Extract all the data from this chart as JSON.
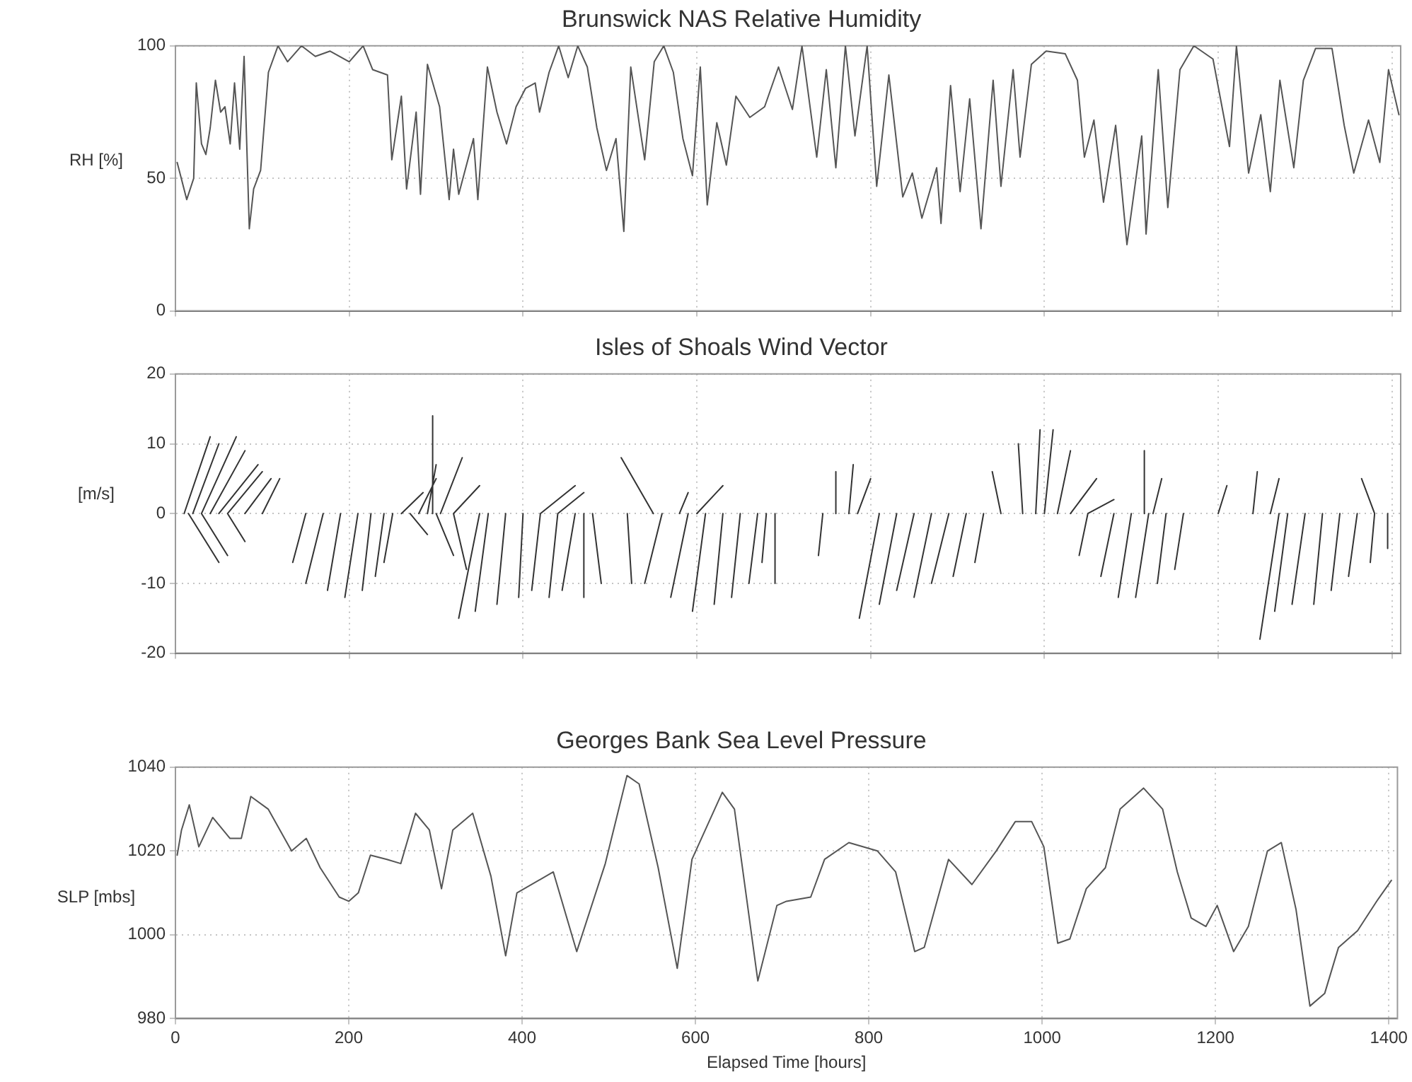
{
  "chart_data": [
    {
      "type": "line",
      "title": "Brunswick NAS Relative Humidity",
      "ylabel": "RH [%]",
      "color": "#555555",
      "marker": "none",
      "grid": true,
      "tick_labels": "y",
      "xlim": [
        0,
        1410
      ],
      "xticks": [
        0,
        200,
        400,
        600,
        800,
        1000,
        1200,
        1400
      ],
      "ylim": [
        0,
        100
      ],
      "yticks": [
        0,
        50,
        100
      ],
      "x": [
        2,
        13,
        21,
        24,
        30,
        35,
        40,
        46,
        52,
        57,
        63,
        68,
        74,
        79,
        85,
        90,
        98,
        107,
        118,
        129,
        145,
        161,
        178,
        200,
        216,
        227,
        244,
        249,
        260,
        266,
        277,
        282,
        290,
        304,
        315,
        320,
        326,
        343,
        348,
        359,
        370,
        381,
        392,
        403,
        414,
        419,
        430,
        441,
        452,
        463,
        474,
        485,
        496,
        507,
        516,
        524,
        540,
        551,
        562,
        573,
        584,
        595,
        604,
        612,
        623,
        634,
        645,
        661,
        678,
        694,
        710,
        721,
        738,
        749,
        760,
        771,
        782,
        796,
        807,
        821,
        837,
        848,
        859,
        876,
        881,
        892,
        903,
        914,
        927,
        941,
        950,
        964,
        972,
        985,
        1002,
        1024,
        1038,
        1046,
        1057,
        1068,
        1082,
        1095,
        1112,
        1117,
        1131,
        1142,
        1156,
        1172,
        1194,
        1213,
        1221,
        1235,
        1249,
        1260,
        1271,
        1287,
        1298,
        1312,
        1331,
        1345,
        1356,
        1373,
        1386,
        1396,
        1408
      ],
      "values": [
        56,
        42,
        50,
        86,
        63,
        59,
        69,
        87,
        75,
        77,
        63,
        86,
        61,
        96,
        31,
        46,
        53,
        90,
        100,
        94,
        100,
        96,
        98,
        94,
        100,
        91,
        89,
        57,
        81,
        46,
        75,
        44,
        93,
        77,
        42,
        61,
        44,
        65,
        42,
        92,
        75,
        63,
        77,
        84,
        86,
        75,
        90,
        100,
        88,
        100,
        92,
        69,
        53,
        65,
        30,
        92,
        57,
        94,
        100,
        90,
        65,
        51,
        92,
        40,
        71,
        55,
        81,
        73,
        77,
        92,
        76,
        100,
        58,
        91,
        54,
        100,
        66,
        100,
        47,
        89,
        43,
        52,
        35,
        54,
        33,
        85,
        45,
        80,
        31,
        87,
        47,
        91,
        58,
        93,
        98,
        97,
        87,
        58,
        72,
        41,
        70,
        25,
        66,
        29,
        91,
        39,
        91,
        100,
        95,
        62,
        100,
        52,
        74,
        45,
        87,
        54,
        87,
        99,
        99,
        70,
        52,
        72,
        56,
        91,
        74
      ]
    },
    {
      "type": "line",
      "title": "Isles of Shoals Wind Vector",
      "ylabel": "[m/s]",
      "marker": "none",
      "grid": true,
      "tick_labels": "y",
      "xlim": [
        0,
        1410
      ],
      "xticks": [
        0,
        200,
        400,
        600,
        800,
        1000,
        1200,
        1400
      ],
      "ylim": [
        -20,
        20
      ],
      "yticks": [
        -20,
        -10,
        0,
        10,
        20
      ],
      "x": [
        10,
        40,
        null,
        20,
        50,
        null,
        30,
        70,
        null,
        40,
        80,
        null,
        50,
        95,
        null,
        60,
        100,
        null,
        80,
        110,
        null,
        100,
        120,
        null,
        15,
        50,
        null,
        30,
        60,
        null,
        60,
        80,
        null,
        150,
        135,
        null,
        170,
        150,
        null,
        190,
        175,
        null,
        210,
        195,
        null,
        225,
        215,
        null,
        240,
        230,
        null,
        250,
        240,
        null,
        260,
        285,
        null,
        270,
        290,
        null,
        280,
        300,
        null,
        290,
        300,
        null,
        296,
        296,
        null,
        305,
        330,
        null,
        320,
        350,
        null,
        300,
        320,
        null,
        320,
        335,
        null,
        350,
        326,
        null,
        360,
        345,
        null,
        380,
        370,
        null,
        400,
        395,
        null,
        420,
        410,
        null,
        440,
        430,
        null,
        460,
        445,
        null,
        470,
        470,
        null,
        480,
        490,
        null,
        420,
        460,
        null,
        440,
        470,
        null,
        550,
        513,
        null,
        520,
        525,
        null,
        560,
        540,
        null,
        580,
        590,
        null,
        600,
        630,
        null,
        590,
        570,
        null,
        610,
        595,
        null,
        630,
        620,
        null,
        650,
        640,
        null,
        670,
        660,
        null,
        680,
        675,
        null,
        690,
        690,
        null,
        745,
        740,
        null,
        760,
        760,
        null,
        775,
        780,
        null,
        785,
        800,
        null,
        810,
        787,
        null,
        830,
        810,
        null,
        850,
        830,
        null,
        870,
        850,
        null,
        890,
        870,
        null,
        910,
        895,
        null,
        930,
        920,
        null,
        950,
        940,
        null,
        975,
        970,
        null,
        990,
        995,
        null,
        1000,
        1010,
        null,
        1015,
        1030,
        null,
        1030,
        1060,
        null,
        1050,
        1080,
        null,
        1050,
        1040,
        null,
        1080,
        1065,
        null,
        1100,
        1085,
        null,
        1120,
        1105,
        null,
        1140,
        1130,
        null,
        1160,
        1150,
        null,
        1115,
        1115,
        null,
        1125,
        1135,
        null,
        1200,
        1210,
        null,
        1240,
        1245,
        null,
        1260,
        1270,
        null,
        1270,
        1248,
        null,
        1280,
        1265,
        null,
        1300,
        1285,
        null,
        1320,
        1310,
        null,
        1340,
        1330,
        null,
        1360,
        1350,
        null,
        1380,
        1375,
        null,
        1395,
        1395,
        null,
        1380,
        1365,
        null
      ],
      "series": [
        {
          "color": "#333333",
          "values": [
            0,
            11,
            null,
            0,
            10,
            null,
            0,
            11,
            null,
            0,
            9,
            null,
            0,
            7,
            null,
            0,
            6,
            null,
            0,
            5,
            null,
            0,
            5,
            null,
            0,
            -7,
            null,
            0,
            -6,
            null,
            0,
            -4,
            null,
            0,
            -7,
            null,
            0,
            -10,
            null,
            0,
            -11,
            null,
            0,
            -12,
            null,
            0,
            -11,
            null,
            0,
            -9,
            null,
            0,
            -7,
            null,
            0,
            3,
            null,
            0,
            -3,
            null,
            0,
            5,
            null,
            0,
            7,
            null,
            0,
            14,
            null,
            0,
            8,
            null,
            0,
            4,
            null,
            0,
            -6,
            null,
            0,
            -8,
            null,
            0,
            -15,
            null,
            0,
            -14,
            null,
            0,
            -13,
            null,
            0,
            -12,
            null,
            0,
            -11,
            null,
            0,
            -12,
            null,
            0,
            -11,
            null,
            0,
            -12,
            null,
            0,
            -10,
            null,
            0,
            4,
            null,
            0,
            3,
            null,
            0,
            8,
            null,
            0,
            -10,
            null,
            0,
            -10,
            null,
            0,
            3,
            null,
            0,
            4,
            null,
            0,
            -12,
            null,
            0,
            -14,
            null,
            0,
            -13,
            null,
            0,
            -12,
            null,
            0,
            -10,
            null,
            0,
            -7,
            null,
            0,
            -10,
            null,
            0,
            -6,
            null,
            0,
            6,
            null,
            0,
            7,
            null,
            0,
            5,
            null,
            0,
            -15,
            null,
            0,
            -13,
            null,
            0,
            -11,
            null,
            0,
            -12,
            null,
            0,
            -10,
            null,
            0,
            -9,
            null,
            0,
            -7,
            null,
            0,
            6,
            null,
            0,
            10,
            null,
            0,
            12,
            null,
            0,
            12,
            null,
            0,
            9,
            null,
            0,
            5,
            null,
            0,
            2,
            null,
            0,
            -6,
            null,
            0,
            -9,
            null,
            0,
            -12,
            null,
            0,
            -12,
            null,
            0,
            -10,
            null,
            0,
            -8,
            null,
            0,
            9,
            null,
            0,
            5,
            null,
            0,
            4,
            null,
            0,
            6,
            null,
            0,
            5,
            null,
            0,
            -18,
            null,
            0,
            -14,
            null,
            0,
            -13,
            null,
            0,
            -13,
            null,
            0,
            -11,
            null,
            0,
            -9,
            null,
            0,
            -7,
            null,
            0,
            -5,
            null,
            0,
            5,
            null
          ]
        }
      ]
    },
    {
      "type": "line",
      "title": "Georges Bank Sea Level Pressure",
      "ylabel": "SLP [mbs]",
      "xlabel": "Elapsed Time [hours]",
      "color": "#555555",
      "marker": "none",
      "grid": true,
      "xlim": [
        0,
        1410
      ],
      "xticks": [
        0,
        200,
        400,
        600,
        800,
        1000,
        1200,
        1400
      ],
      "ylim": [
        980,
        1040
      ],
      "yticks": [
        980,
        1000,
        1020,
        1040
      ],
      "x": [
        2,
        7,
        16,
        27,
        43,
        63,
        76,
        87,
        107,
        134,
        151,
        167,
        189,
        200,
        211,
        225,
        244,
        260,
        277,
        293,
        307,
        320,
        343,
        364,
        381,
        394,
        436,
        463,
        496,
        521,
        535,
        557,
        579,
        596,
        631,
        645,
        672,
        694,
        705,
        733,
        749,
        777,
        810,
        831,
        853,
        864,
        892,
        919,
        947,
        969,
        988,
        1002,
        1018,
        1032,
        1051,
        1073,
        1090,
        1117,
        1139,
        1156,
        1172,
        1189,
        1202,
        1221,
        1238,
        1260,
        1276,
        1293,
        1309,
        1326,
        1342,
        1364,
        1386,
        1403
      ],
      "values": [
        1019,
        1025,
        1031,
        1021,
        1028,
        1023,
        1023,
        1033,
        1030,
        1020,
        1023,
        1016,
        1009,
        1008,
        1010,
        1019,
        1018,
        1017,
        1029,
        1025,
        1011,
        1025,
        1029,
        1014,
        995,
        1010,
        1015,
        996,
        1017,
        1038,
        1036,
        1016,
        992,
        1018,
        1034,
        1030,
        989,
        1007,
        1008,
        1009,
        1018,
        1022,
        1020,
        1015,
        996,
        997,
        1018,
        1012,
        1020,
        1027,
        1027,
        1021,
        998,
        999,
        1011,
        1016,
        1030,
        1035,
        1030,
        1015,
        1004,
        1002,
        1007,
        996,
        1002,
        1020,
        1022,
        1006,
        983,
        986,
        997,
        1001,
        1008,
        1013
      ]
    }
  ]
}
